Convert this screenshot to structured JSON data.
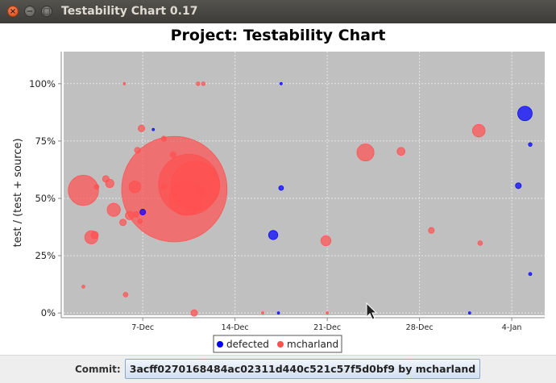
{
  "window": {
    "title": "Testability Chart 0.17",
    "close_glyph": "×",
    "minimize_glyph": "−",
    "maximize_glyph": "□"
  },
  "commit": {
    "label": "Commit:",
    "value": "3acff0270168484ac02311d440c521c57f5d0bf9 by mcharland"
  },
  "chart_data": {
    "type": "scatter",
    "variant": "bubble",
    "title": "Project: Testability Chart",
    "xlabel": "",
    "ylabel": "test / (test + source)",
    "x_ticks": [
      "7-Dec",
      "14-Dec",
      "21-Dec",
      "28-Dec",
      "4-Jan"
    ],
    "y_ticks": [
      "0%",
      "25%",
      "50%",
      "75%",
      "100%"
    ],
    "x_axis_start_day": 1,
    "xlim_days": [
      1.0,
      37.5
    ],
    "ylim": [
      -0.01,
      1.14
    ],
    "grid": true,
    "legend_placement": "bottom",
    "colors": {
      "defected": "#0000ff",
      "mcharland": "#ff5050",
      "plot_bg": "#c0c0c0"
    },
    "series": [
      {
        "name": "defected",
        "points": [
          {
            "x": 7.0,
            "y": 0.44,
            "r": 0.22
          },
          {
            "x": 7.8,
            "y": 0.8,
            "r": 0.08
          },
          {
            "x": 16.9,
            "y": 0.34,
            "r": 0.35
          },
          {
            "x": 17.5,
            "y": 1.0,
            "r": 0.08
          },
          {
            "x": 17.5,
            "y": 0.545,
            "r": 0.18
          },
          {
            "x": 17.3,
            "y": 0.0,
            "r": 0.08
          },
          {
            "x": 35.5,
            "y": 0.555,
            "r": 0.22
          },
          {
            "x": 36.0,
            "y": 0.87,
            "r": 0.55
          },
          {
            "x": 36.4,
            "y": 0.735,
            "r": 0.14
          },
          {
            "x": 36.4,
            "y": 0.17,
            "r": 0.12
          },
          {
            "x": 31.8,
            "y": 0.0,
            "r": 0.06
          }
        ]
      },
      {
        "name": "mcharland",
        "points": [
          {
            "x": 2.5,
            "y": 0.535,
            "r": 1.15
          },
          {
            "x": 3.1,
            "y": 0.33,
            "r": 0.5
          },
          {
            "x": 3.35,
            "y": 0.34,
            "r": 0.28
          },
          {
            "x": 3.5,
            "y": 0.55,
            "r": 0.18
          },
          {
            "x": 2.5,
            "y": 0.115,
            "r": 0.12
          },
          {
            "x": 4.2,
            "y": 0.585,
            "r": 0.25
          },
          {
            "x": 4.5,
            "y": 0.565,
            "r": 0.32
          },
          {
            "x": 4.8,
            "y": 0.45,
            "r": 0.5
          },
          {
            "x": 5.5,
            "y": 0.395,
            "r": 0.25
          },
          {
            "x": 6.0,
            "y": 0.425,
            "r": 0.32
          },
          {
            "x": 6.5,
            "y": 0.43,
            "r": 0.22
          },
          {
            "x": 6.4,
            "y": 0.55,
            "r": 0.45
          },
          {
            "x": 6.6,
            "y": 0.71,
            "r": 0.22
          },
          {
            "x": 6.9,
            "y": 0.805,
            "r": 0.25
          },
          {
            "x": 6.8,
            "y": 0.4,
            "r": 0.18
          },
          {
            "x": 5.7,
            "y": 0.08,
            "r": 0.18
          },
          {
            "x": 5.6,
            "y": 1.0,
            "r": 0.09
          },
          {
            "x": 8.6,
            "y": 0.76,
            "r": 0.2
          },
          {
            "x": 8.6,
            "y": 0.55,
            "r": 0.2
          },
          {
            "x": 9.3,
            "y": 0.69,
            "r": 0.22
          },
          {
            "x": 9.4,
            "y": 0.54,
            "r": 4.0
          },
          {
            "x": 10.3,
            "y": 0.5,
            "r": 1.3
          },
          {
            "x": 10.5,
            "y": 0.56,
            "r": 2.3
          },
          {
            "x": 11.0,
            "y": 0.555,
            "r": 1.85
          },
          {
            "x": 11.5,
            "y": 0.53,
            "r": 0.3
          },
          {
            "x": 11.2,
            "y": 1.0,
            "r": 0.14
          },
          {
            "x": 11.6,
            "y": 1.0,
            "r": 0.14
          },
          {
            "x": 10.9,
            "y": 0.0,
            "r": 0.25
          },
          {
            "x": 16.1,
            "y": 0.0,
            "r": 0.06
          },
          {
            "x": 21.0,
            "y": 0.0,
            "r": 0.06
          },
          {
            "x": 20.9,
            "y": 0.315,
            "r": 0.38
          },
          {
            "x": 23.9,
            "y": 0.7,
            "r": 0.65
          },
          {
            "x": 26.6,
            "y": 0.705,
            "r": 0.3
          },
          {
            "x": 28.9,
            "y": 0.36,
            "r": 0.22
          },
          {
            "x": 32.5,
            "y": 0.795,
            "r": 0.48
          },
          {
            "x": 32.6,
            "y": 0.305,
            "r": 0.18
          }
        ]
      }
    ]
  }
}
